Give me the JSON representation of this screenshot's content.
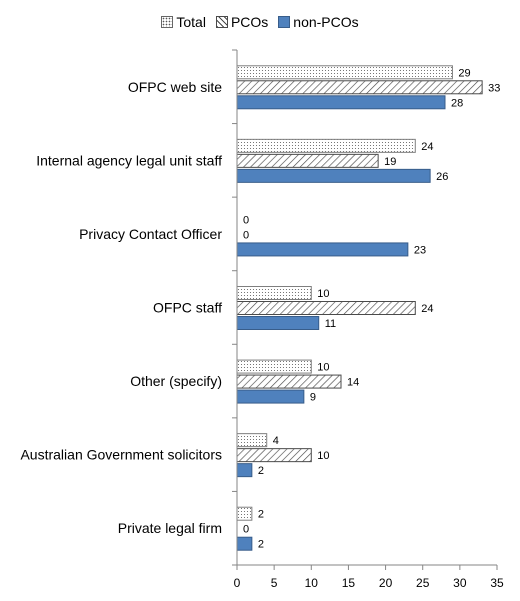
{
  "chart_data": {
    "type": "bar",
    "orientation": "horizontal",
    "categories": [
      "OFPC web site",
      "Internal agency legal unit staff",
      "Privacy Contact Officer",
      "OFPC staff",
      "Other (specify)",
      "Australian Government solicitors",
      "Private legal firm"
    ],
    "series": [
      {
        "name": "Total",
        "values": [
          29,
          24,
          0,
          10,
          10,
          4,
          2
        ],
        "pattern": "dots",
        "color": "#ffffff"
      },
      {
        "name": "PCOs",
        "values": [
          33,
          19,
          0,
          24,
          14,
          10,
          0
        ],
        "pattern": "diagonal",
        "color": "#ffffff"
      },
      {
        "name": "non-PCOs",
        "values": [
          28,
          26,
          23,
          11,
          9,
          2,
          2
        ],
        "pattern": "solid",
        "color": "#4f81bd"
      }
    ],
    "data_labels": [
      [
        "29",
        "24",
        "0",
        "10",
        "10",
        "4",
        "2"
      ],
      [
        "33",
        "19",
        "0",
        "24",
        "14",
        "10",
        "0"
      ],
      [
        "28",
        "26",
        "23",
        "11",
        "9",
        "2",
        "2"
      ]
    ],
    "xlim": [
      0,
      35
    ],
    "xticks": [
      0,
      5,
      10,
      15,
      20,
      25,
      30,
      35
    ],
    "xtick_labels": [
      "0",
      "5",
      "10",
      "15",
      "20",
      "25",
      "30",
      "35"
    ],
    "legend_position": "top",
    "grid": false
  }
}
